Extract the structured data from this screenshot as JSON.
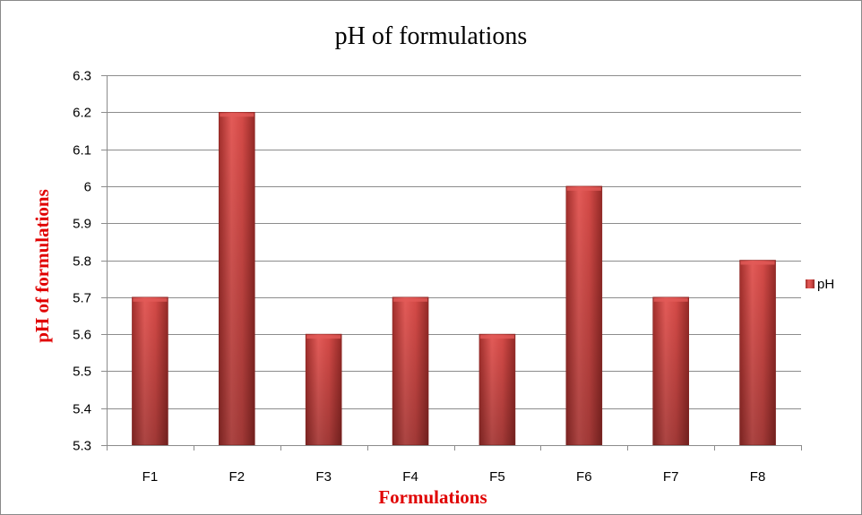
{
  "chart_data": {
    "type": "bar",
    "title": "pH of formulations",
    "xlabel": "Formulations",
    "ylabel": "pH of formulations",
    "categories": [
      "F1",
      "F2",
      "F3",
      "F4",
      "F5",
      "F6",
      "F7",
      "F8"
    ],
    "series": [
      {
        "name": "pH",
        "values": [
          5.7,
          6.2,
          5.6,
          5.7,
          5.6,
          6.0,
          5.7,
          5.8
        ]
      }
    ],
    "ylim": [
      5.3,
      6.3
    ],
    "yticks": [
      "5.3",
      "5.4",
      "5.5",
      "5.6",
      "5.7",
      "5.8",
      "5.9",
      "6",
      "6.1",
      "6.2",
      "6.3"
    ],
    "grid": true,
    "legend_position": "right",
    "colors": {
      "bar": "#c0403e",
      "bar_light": "#e25a57",
      "bar_dark": "#8e2724",
      "axis_title": "#e00000",
      "grid": "#8c8c8c"
    }
  }
}
